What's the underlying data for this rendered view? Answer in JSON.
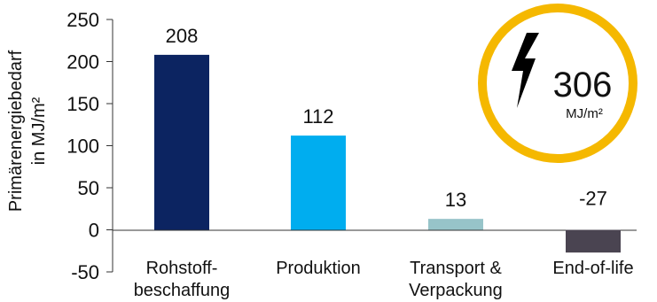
{
  "chart_data": {
    "type": "bar",
    "ylabel": [
      "Primärenergiebedarf",
      "in MJ/m²"
    ],
    "ylim": [
      -50,
      250
    ],
    "yticks": [
      "250",
      "200",
      "150",
      "100",
      "50",
      "0",
      "-50"
    ],
    "ytick_values": [
      250,
      200,
      150,
      100,
      50,
      0,
      -50
    ],
    "categories": [
      [
        "Rohstoff-",
        "beschaffung"
      ],
      [
        "Produktion"
      ],
      [
        "Transport &",
        "Verpackung"
      ],
      [
        "End-of-life"
      ]
    ],
    "values": [
      208,
      112,
      13,
      -27
    ],
    "data_labels": [
      "208",
      "112",
      "13",
      "-27"
    ],
    "colors": [
      "#0c2461",
      "#00adef",
      "#97c4c9",
      "#4a4451"
    ],
    "grid": false,
    "legend": "none"
  },
  "badge": {
    "icon": "lightning-bolt-icon",
    "value": "306",
    "unit": "MJ/m²",
    "ring_color": "#f5b800"
  }
}
